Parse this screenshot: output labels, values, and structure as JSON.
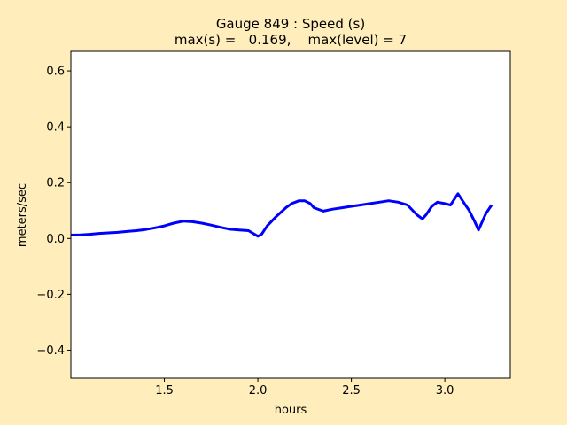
{
  "chart_data": {
    "type": "line",
    "title": "Gauge 849 : Speed (s)",
    "subtitle": "max(s) =   0.169,    max(level) = 7",
    "xlabel": "hours",
    "ylabel": "meters/sec",
    "xlim": [
      1.0,
      3.35
    ],
    "ylim": [
      -0.5,
      0.67
    ],
    "xticks": [
      1.5,
      2.0,
      2.5,
      3.0
    ],
    "xtick_labels": [
      "1.5",
      "2.0",
      "2.5",
      "3.0"
    ],
    "yticks": [
      -0.4,
      -0.2,
      0.0,
      0.2,
      0.4,
      0.6
    ],
    "ytick_labels": [
      "−0.4",
      "−0.2",
      "0.0",
      "0.2",
      "0.4",
      "0.6"
    ],
    "grid": false,
    "colors": {
      "line": "#0000ff",
      "background": "#ffeebb",
      "plot_area": "#ffffff"
    },
    "series": [
      {
        "x": [
          1.0,
          1.05,
          1.1,
          1.15,
          1.2,
          1.25,
          1.3,
          1.35,
          1.4,
          1.45,
          1.5,
          1.55,
          1.6,
          1.65,
          1.7,
          1.75,
          1.8,
          1.85,
          1.9,
          1.95,
          2.0,
          2.02,
          2.05,
          2.1,
          2.15,
          2.18,
          2.2,
          2.22,
          2.25,
          2.28,
          2.3,
          2.35,
          2.4,
          2.45,
          2.5,
          2.55,
          2.6,
          2.65,
          2.7,
          2.75,
          2.8,
          2.85,
          2.88,
          2.9,
          2.93,
          2.96,
          3.0,
          3.03,
          3.05,
          3.07,
          3.1,
          3.13,
          3.16,
          3.18,
          3.2,
          3.22,
          3.25
        ],
        "y": [
          0.012,
          0.013,
          0.015,
          0.018,
          0.02,
          0.022,
          0.025,
          0.028,
          0.032,
          0.038,
          0.045,
          0.055,
          0.062,
          0.06,
          0.055,
          0.048,
          0.04,
          0.033,
          0.03,
          0.028,
          0.008,
          0.015,
          0.045,
          0.08,
          0.11,
          0.125,
          0.13,
          0.135,
          0.135,
          0.125,
          0.11,
          0.098,
          0.105,
          0.11,
          0.115,
          0.12,
          0.125,
          0.13,
          0.135,
          0.13,
          0.12,
          0.085,
          0.07,
          0.085,
          0.115,
          0.13,
          0.125,
          0.12,
          0.14,
          0.16,
          0.13,
          0.1,
          0.06,
          0.03,
          0.06,
          0.09,
          0.12
        ]
      }
    ]
  }
}
